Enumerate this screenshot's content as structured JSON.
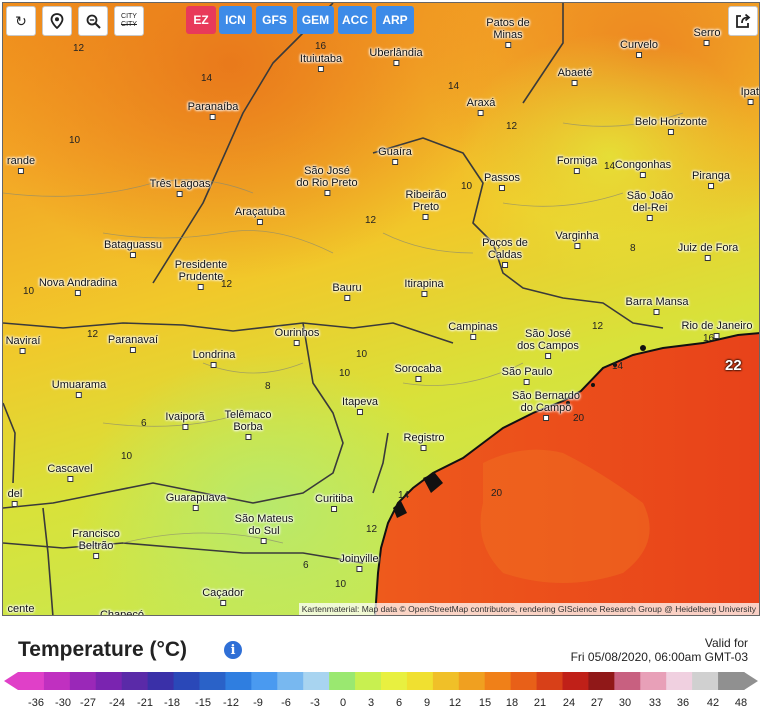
{
  "toolbar": {
    "reload_icon": "reload-icon",
    "location_icon": "location-pin-icon",
    "zoom_icon": "zoom-out-icon",
    "city_toggle_label_top": "CITY",
    "city_toggle_label_bottom": "CITY",
    "share_icon": "share-icon"
  },
  "models": [
    {
      "label": "EZ",
      "color": "#e83a5a",
      "active": true
    },
    {
      "label": "ICN",
      "color": "#3d8be8",
      "active": false
    },
    {
      "label": "GFS",
      "color": "#3d8be8",
      "active": false
    },
    {
      "label": "GEM",
      "color": "#3d8be8",
      "active": false
    },
    {
      "label": "ACC",
      "color": "#3d8be8",
      "active": false
    },
    {
      "label": "ARP",
      "color": "#3d8be8",
      "active": false
    }
  ],
  "cities": [
    {
      "name": "Patos de\nMinas"
    },
    {
      "name": "Uberlândia"
    },
    {
      "name": "Ituiutaba"
    },
    {
      "name": "Araxá"
    },
    {
      "name": "Paranaíba"
    },
    {
      "name": "Curvelo"
    },
    {
      "name": "Serro"
    },
    {
      "name": "Abaeté"
    },
    {
      "name": "Belo Horizonte"
    },
    {
      "name": "Ipati"
    },
    {
      "name": "Guaíra"
    },
    {
      "name": "São José\ndo Rio Preto"
    },
    {
      "name": "Três Lagoas"
    },
    {
      "name": "Passos"
    },
    {
      "name": "Formiga"
    },
    {
      "name": "Congonhas"
    },
    {
      "name": "Piranga"
    },
    {
      "name": "Ribeirão\nPreto"
    },
    {
      "name": "São João\ndel-Rei"
    },
    {
      "name": "Araçatuba"
    },
    {
      "name": "Varginha"
    },
    {
      "name": "Bataguassu"
    },
    {
      "name": "Poços de\nCaldas"
    },
    {
      "name": "Juiz de Fora"
    },
    {
      "name": "Presidente\nPrudente"
    },
    {
      "name": "Nova Andradina"
    },
    {
      "name": "Bauru"
    },
    {
      "name": "Itirapina"
    },
    {
      "name": "Barra Mansa"
    },
    {
      "name": "Campinas"
    },
    {
      "name": "Rio de Janeiro"
    },
    {
      "name": "Ourinhos"
    },
    {
      "name": "São José\ndos Campos"
    },
    {
      "name": "Paranavaí"
    },
    {
      "name": "Naviraí"
    },
    {
      "name": "Londrina"
    },
    {
      "name": "Sorocaba"
    },
    {
      "name": "São Paulo"
    },
    {
      "name": "Umuarama"
    },
    {
      "name": "São Bernardo\ndo Campo"
    },
    {
      "name": "Itapeva"
    },
    {
      "name": "Ivaiporã"
    },
    {
      "name": "Telêmaco\nBorba"
    },
    {
      "name": "Registro"
    },
    {
      "name": "Cascavel"
    },
    {
      "name": "Guarapuava"
    },
    {
      "name": "Curitiba"
    },
    {
      "name": "São Mateus\ndo Sul"
    },
    {
      "name": "Francisco\nBeltrão"
    },
    {
      "name": "Joinville"
    },
    {
      "name": "Caçador"
    },
    {
      "name": "Chapecó"
    },
    {
      "name": "rande"
    },
    {
      "name": "del"
    },
    {
      "name": "cente"
    }
  ],
  "isolines": [
    {
      "value": "12"
    },
    {
      "value": "16"
    },
    {
      "value": "14"
    },
    {
      "value": "14"
    },
    {
      "value": "12"
    },
    {
      "value": "10"
    },
    {
      "value": "10"
    },
    {
      "value": "12"
    },
    {
      "value": "14"
    },
    {
      "value": "8"
    },
    {
      "value": "12"
    },
    {
      "value": "10"
    },
    {
      "value": "12"
    },
    {
      "value": "16"
    },
    {
      "value": "12"
    },
    {
      "value": "14"
    },
    {
      "value": "10"
    },
    {
      "value": "8"
    },
    {
      "value": "10"
    },
    {
      "value": "20"
    },
    {
      "value": "6"
    },
    {
      "value": "14"
    },
    {
      "value": "12"
    },
    {
      "value": "10"
    },
    {
      "value": "6"
    },
    {
      "value": "20"
    },
    {
      "value": "10"
    },
    {
      "value": "22"
    }
  ],
  "attribution": "Kartenmaterial: Map data © OpenStreetMap contributors, rendering GIScience Research Group @ Heidelberg University",
  "legend": {
    "title": "Temperature (°C)",
    "info_icon": "info-icon",
    "valid_label": "Valid for",
    "valid_time": "Fri 05/08/2020, 06:00am GMT-03",
    "ticks": [
      "-36",
      "-30",
      "-27",
      "-24",
      "-21",
      "-18",
      "-15",
      "-12",
      "-9",
      "-6",
      "-3",
      "0",
      "3",
      "6",
      "9",
      "12",
      "15",
      "18",
      "21",
      "24",
      "27",
      "30",
      "33",
      "36",
      "42",
      "48"
    ],
    "colors": [
      "#e040c8",
      "#c030c0",
      "#9a28b8",
      "#7a24b0",
      "#5a2aa8",
      "#3a30a8",
      "#2a48b8",
      "#2a62c8",
      "#2f7ee0",
      "#4a9af0",
      "#78b8f0",
      "#a8d4f0",
      "#9ae870",
      "#c8f050",
      "#e8f040",
      "#f0e030",
      "#f0c028",
      "#f0a020",
      "#f08018",
      "#e86018",
      "#d84018",
      "#c02018",
      "#901818",
      "#c86080",
      "#e8a0b8",
      "#f0d0e0",
      "#d0d0d0",
      "#909090"
    ]
  }
}
